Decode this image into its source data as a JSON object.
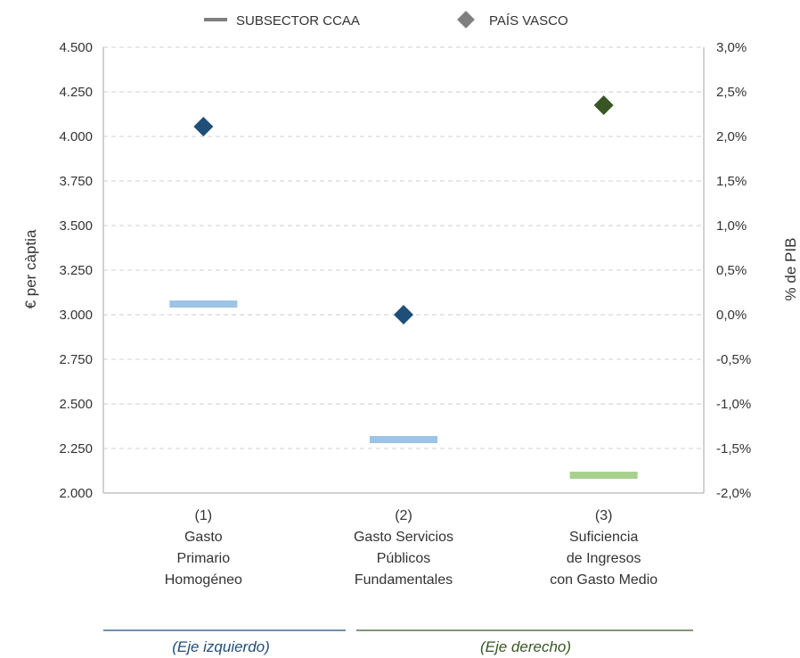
{
  "chart_data": {
    "type": "scatter",
    "legend": {
      "placement": "top",
      "items": [
        {
          "label": "SUBSECTOR CCAA",
          "marker": "dash",
          "color": "#7f7f7f"
        },
        {
          "label": "PAÍS VASCO",
          "marker": "diamond",
          "color": "#7f7f7f"
        }
      ]
    },
    "y_left": {
      "label": "€ per càptia",
      "range": [
        2000,
        4500
      ],
      "ticks": [
        2000,
        2250,
        2500,
        2750,
        3000,
        3250,
        3500,
        3750,
        4000,
        4250,
        4500
      ],
      "tick_labels": [
        "2.000",
        "2.250",
        "2.500",
        "2.750",
        "3.000",
        "3.250",
        "3.500",
        "3.750",
        "4.000",
        "4.250",
        "4.500"
      ]
    },
    "y_right": {
      "label": "% de PIB",
      "range": [
        -2.0,
        3.0
      ],
      "ticks": [
        -2.0,
        -1.5,
        -1.0,
        -0.5,
        0.0,
        0.5,
        1.0,
        1.5,
        2.0,
        2.5,
        3.0
      ],
      "tick_labels": [
        "-2,0%",
        "-1,5%",
        "-1,0%",
        "-0,5%",
        "0,0%",
        "0,5%",
        "1,0%",
        "1,5%",
        "2,0%",
        "2,5%",
        "3,0%"
      ]
    },
    "grid": true,
    "categories": [
      {
        "lines": [
          "(1)",
          "Gasto",
          "Primario",
          "Homogéneo"
        ],
        "axis": "left"
      },
      {
        "lines": [
          "(2)",
          "Gasto Servicios",
          "Públicos",
          "Fundamentales"
        ],
        "axis": "left"
      },
      {
        "lines": [
          "(3)",
          "Suficiencia",
          "de Ingresos",
          "con Gasto Medio"
        ],
        "axis": "right"
      }
    ],
    "series": [
      {
        "name": "SUBSECTOR CCAA",
        "marker": "dash",
        "values": [
          3060,
          2300,
          -1.8
        ],
        "colors": [
          "#9dc3e6",
          "#9dc3e6",
          "#a9d18e"
        ]
      },
      {
        "name": "PAÍS VASCO",
        "marker": "diamond",
        "values": [
          4055,
          3000,
          2.35
        ],
        "colors": [
          "#1f4e79",
          "#1f4e79",
          "#375623"
        ]
      }
    ],
    "notes": [
      {
        "text": "(Eje izquierdo)",
        "color": "#1f4e79"
      },
      {
        "text": "(Eje derecho)",
        "color": "#375623"
      }
    ]
  }
}
